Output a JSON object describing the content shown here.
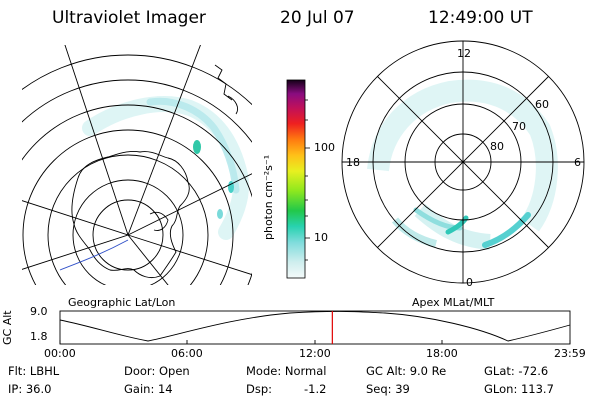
{
  "header": {
    "title": "Ultraviolet Imager",
    "date": "20 Jul 07",
    "time": "12:49:00 UT"
  },
  "left_panel": {
    "caption": "Geographic Lat/Lon"
  },
  "colorbar": {
    "unit_label": "photon cm⁻²s⁻¹",
    "ticks": [
      "100",
      "10"
    ]
  },
  "right_panel": {
    "caption": "Apex MLat/MLT",
    "mlt_labels": {
      "top": "12",
      "left": "18",
      "right": "6",
      "bottom": "0"
    },
    "lat_labels": [
      "60",
      "70",
      "80"
    ]
  },
  "altitude_strip": {
    "axis_label": "GC Alt",
    "y_ticks": [
      "9.0",
      "1.8"
    ],
    "x_ticks": [
      "00:00",
      "06:00",
      "12:00",
      "18:00",
      "23:59"
    ],
    "current_time_fraction": 0.534,
    "marker_color": "#e00000"
  },
  "info": {
    "flt": "Flt: LBHL",
    "door": "Door: Open",
    "mode": "Mode: Normal",
    "gc_alt": "GC Alt: 9.0 Re",
    "glat": "GLat: -72.6",
    "ip": "IP: 36.0",
    "gain": "Gain: 14",
    "dsp_label": "Dsp:",
    "dsp_value": "-1.2",
    "seq": "Seq: 39",
    "glon": "GLon: 113.7"
  }
}
